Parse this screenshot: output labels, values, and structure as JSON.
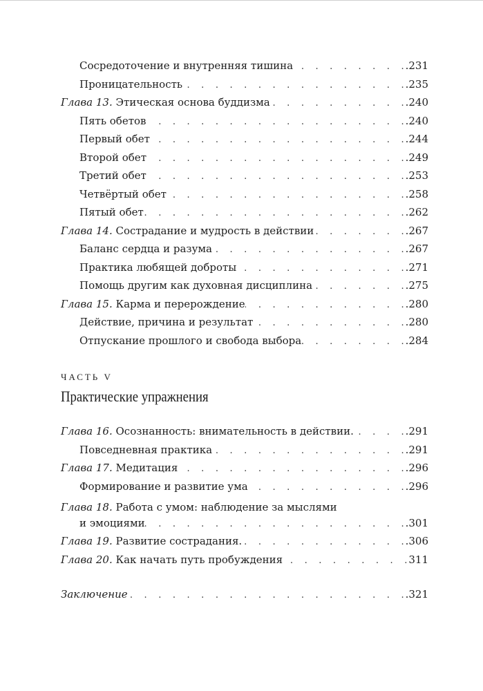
{
  "toc_top": [
    {
      "prefix": "",
      "title": "Сосредоточение и внутренняя тишина",
      "page": ".231",
      "level": 2
    },
    {
      "prefix": "",
      "title": "Проницательность",
      "page": ".235",
      "level": 2
    },
    {
      "prefix": "Глава 13.",
      "title": " Этическая основа буддизма",
      "page": ".240",
      "level": 1
    },
    {
      "prefix": "",
      "title": "Пять обетов",
      "page": ".240",
      "level": 2
    },
    {
      "prefix": "",
      "title": "Первый обет",
      "page": ".244",
      "level": 2
    },
    {
      "prefix": "",
      "title": "Второй обет",
      "page": ".249",
      "level": 2
    },
    {
      "prefix": "",
      "title": "Третий обет",
      "page": ".253",
      "level": 2
    },
    {
      "prefix": "",
      "title": "Четвёртый обет",
      "page": ".258",
      "level": 2
    },
    {
      "prefix": "",
      "title": "Пятый обет",
      "page": ".262",
      "level": 2
    },
    {
      "prefix": "Глава 14.",
      "title": " Сострадание и мудрость в действии",
      "page": ".267",
      "level": 1
    },
    {
      "prefix": "",
      "title": "Баланс сердца и разума",
      "page": ".267",
      "level": 2
    },
    {
      "prefix": "",
      "title": "Практика любящей доброты",
      "page": ".271",
      "level": 2
    },
    {
      "prefix": "",
      "title": "Помощь другим как духовная дисциплина",
      "page": ".275",
      "level": 2
    },
    {
      "prefix": "Глава 15.",
      "title": " Карма и перерождение",
      "page": ".280",
      "level": 1
    },
    {
      "prefix": "",
      "title": "Действие, причина и результат",
      "page": ".280",
      "level": 2
    },
    {
      "prefix": "",
      "title": "Отпускание прошлого и свобода выбора",
      "page": ".284",
      "level": 2
    }
  ],
  "part": {
    "label": "ЧАСТЬ V",
    "title": "Практические упражнения"
  },
  "toc_part5": {
    "ch16": {
      "prefix": "Глава 16.",
      "title": " Осознанность: внимательность в действии.",
      "page": ".291"
    },
    "ch16_sub": {
      "title": "Повседневная практика",
      "page": ".291"
    },
    "ch17": {
      "prefix": "Глава 17.",
      "title": " Медитация",
      "page": ".296"
    },
    "ch17_sub": {
      "title": "Формирование и развитие ума",
      "page": ".296"
    },
    "ch18": {
      "prefix": "Глава 18.",
      "title_line1": " Работа с умом: наблюдение за мыслями",
      "title_line2": "и эмоциями",
      "page": ".301"
    },
    "ch19": {
      "prefix": "Глава 19.",
      "title": " Развитие сострадания.",
      "page": ".306"
    },
    "ch20": {
      "prefix": "Глава 20.",
      "title": " Как начать путь пробуждения",
      "page": "311"
    }
  },
  "conclusion": {
    "title": "Заключение",
    "page": ".321"
  }
}
